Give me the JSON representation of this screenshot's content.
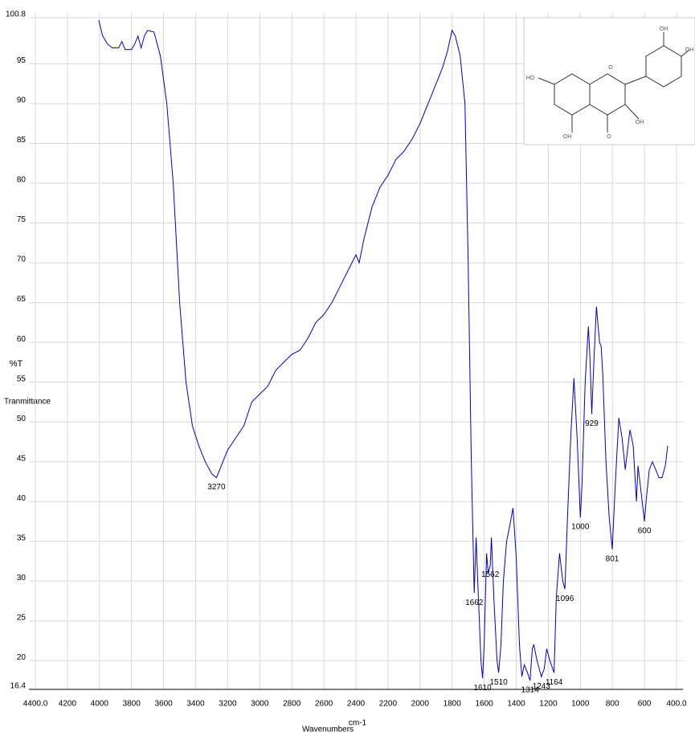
{
  "chart_data": {
    "type": "line",
    "y_label_top": "%T",
    "y_label": "Tranmittance",
    "x_label": "Wavenumbers",
    "x_unit": "cm-1",
    "xlim": [
      4400,
      400
    ],
    "ylim": [
      16.4,
      100.8
    ],
    "xticks": [
      {
        "value": 4400,
        "label": "4400.0"
      },
      4200,
      4000,
      3800,
      3600,
      3400,
      3200,
      3000,
      2800,
      2600,
      2400,
      2200,
      2000,
      1800,
      1600,
      1400,
      1200,
      1000,
      800,
      600,
      {
        "value": 400,
        "label": "400.0"
      }
    ],
    "yticks": [
      16.4,
      20,
      25,
      30,
      35,
      40,
      45,
      50,
      55,
      60,
      65,
      70,
      75,
      80,
      85,
      90,
      95,
      100.8
    ],
    "grid": true,
    "series": [
      {
        "name": "spectrum",
        "color": "#0000cc",
        "x": [
          4005,
          3980,
          3950,
          3920,
          3880,
          3860,
          3840,
          3800,
          3780,
          3760,
          3740,
          3720,
          3700,
          3660,
          3620,
          3580,
          3540,
          3500,
          3460,
          3420,
          3380,
          3340,
          3300,
          3270,
          3240,
          3200,
          3150,
          3100,
          3050,
          3000,
          2950,
          2900,
          2850,
          2800,
          2750,
          2700,
          2650,
          2600,
          2550,
          2500,
          2450,
          2400,
          2380,
          2350,
          2300,
          2250,
          2200,
          2150,
          2100,
          2050,
          2000,
          1950,
          1900,
          1860,
          1830,
          1800,
          1780,
          1750,
          1720,
          1700,
          1680,
          1662,
          1650,
          1640,
          1620,
          1610,
          1600,
          1585,
          1575,
          1562,
          1555,
          1540,
          1520,
          1510,
          1495,
          1480,
          1460,
          1440,
          1420,
          1400,
          1380,
          1365,
          1350,
          1330,
          1314,
          1300,
          1290,
          1270,
          1243,
          1225,
          1210,
          1190,
          1164,
          1150,
          1130,
          1110,
          1096,
          1080,
          1060,
          1040,
          1020,
          1000,
          990,
          970,
          950,
          940,
          929,
          915,
          900,
          880,
          870,
          860,
          840,
          820,
          801,
          780,
          760,
          740,
          720,
          700,
          690,
          670,
          650,
          640,
          620,
          600,
          590,
          570,
          550,
          530,
          510,
          490,
          470,
          455
        ],
        "values": [
          100.5,
          98.5,
          97.5,
          97,
          97,
          97.8,
          96.8,
          96.8,
          97.5,
          98.5,
          97,
          98.5,
          99.2,
          99,
          96,
          90,
          80,
          65,
          55,
          49.5,
          47,
          45,
          43.5,
          43,
          44.5,
          46.5,
          48,
          49.5,
          52.5,
          53.5,
          54.5,
          56.5,
          57.5,
          58.5,
          59,
          60.5,
          62.5,
          63.5,
          65,
          67,
          69,
          71,
          70,
          73,
          77,
          79.5,
          81,
          83,
          84,
          85.5,
          87.5,
          90,
          92.5,
          94.5,
          96.5,
          99.2,
          98.5,
          96,
          90,
          70,
          45,
          28.5,
          35.5,
          30,
          20,
          17.8,
          22,
          33.5,
          31,
          32,
          35.5,
          28,
          20,
          18.5,
          22,
          30,
          35,
          37,
          39.2,
          33,
          22,
          18,
          19.5,
          18.5,
          17.5,
          21.5,
          22,
          20,
          18,
          19,
          21.5,
          20,
          18.5,
          28,
          33.5,
          30,
          29,
          38,
          48,
          55.5,
          48,
          38,
          42,
          55,
          62,
          58,
          51,
          58,
          64.5,
          60,
          59.5,
          56,
          45,
          38,
          34,
          43,
          50.5,
          48,
          44,
          47.5,
          49,
          47,
          40,
          44.5,
          41,
          37.5,
          40,
          44,
          45,
          44,
          43,
          43,
          44.5,
          47
        ]
      }
    ],
    "peak_labels": [
      3270,
      1662,
      1610,
      1562,
      1510,
      1314,
      1243,
      1164,
      1096,
      1000,
      929,
      801,
      600
    ]
  },
  "inset": {
    "labels": [
      "OH",
      "OH",
      "HO",
      "OH",
      "OH",
      "O",
      "O"
    ]
  }
}
